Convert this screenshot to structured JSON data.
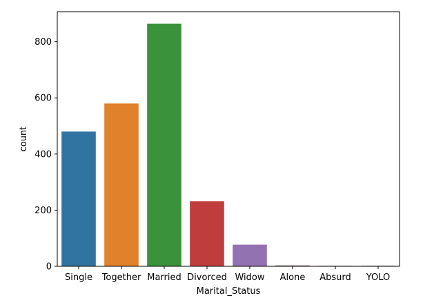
{
  "chart_data": {
    "type": "bar",
    "title": "",
    "xlabel": "Marital_Status",
    "ylabel": "count",
    "categories": [
      "Single",
      "Together",
      "Married",
      "Divorced",
      "Widow",
      "Alone",
      "Absurd",
      "YOLO"
    ],
    "values": [
      480,
      580,
      864,
      232,
      77,
      3,
      2,
      2
    ],
    "colors": [
      "#3274a1",
      "#e1812c",
      "#3a923a",
      "#c03d3e",
      "#9372b2",
      "#845b53",
      "#d684bd",
      "#7f7f7f"
    ],
    "ylim": [
      0,
      907
    ],
    "yticks": [
      0,
      200,
      400,
      600,
      800
    ],
    "grid": false,
    "legend": "none"
  }
}
